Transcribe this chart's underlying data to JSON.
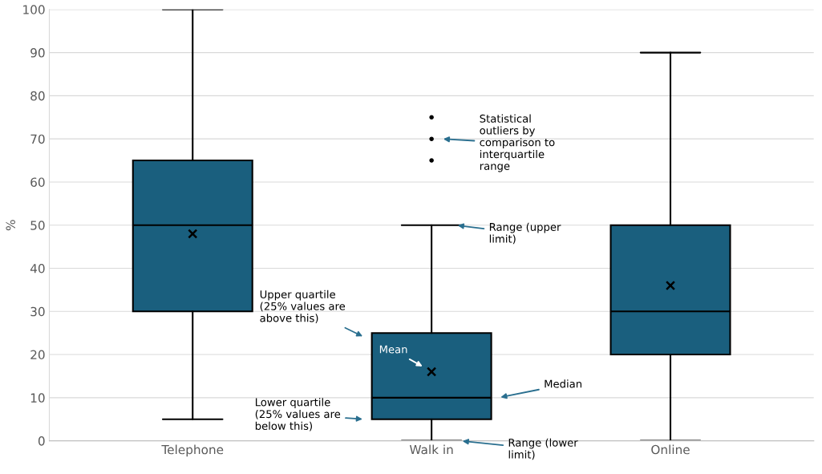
{
  "chart_data": {
    "type": "box",
    "ylabel": "%",
    "categories": [
      "Telephone",
      "Walk in",
      "Online"
    ],
    "boxes": [
      {
        "low": 5,
        "q1": 30,
        "median": 50,
        "q3": 65,
        "high": 100,
        "mean": 48
      },
      {
        "low": 0,
        "q1": 5,
        "median": 10,
        "q3": 25,
        "high": 50,
        "mean": 16,
        "outliers": [
          65,
          70,
          75
        ]
      },
      {
        "low": 0,
        "q1": 20,
        "median": 30,
        "q3": 50,
        "high": 90,
        "mean": 36
      }
    ],
    "color": "#1a5f7e",
    "ylim": [
      0,
      100
    ],
    "yticks": [
      0,
      10,
      20,
      30,
      40,
      50,
      60,
      70,
      80,
      90,
      100
    ],
    "grid": "y",
    "marker": "cross",
    "annotations": [
      "Statistical\noutliers by\ncomparison to\ninterquartile\nrange",
      "Range (upper\nlimit)",
      "Upper quartile\n(25% values are\nabove this)",
      "Mean",
      "Median",
      "Lower quartile\n(25% values are\nbelow this)",
      "Range (lower\nlimit)"
    ]
  }
}
